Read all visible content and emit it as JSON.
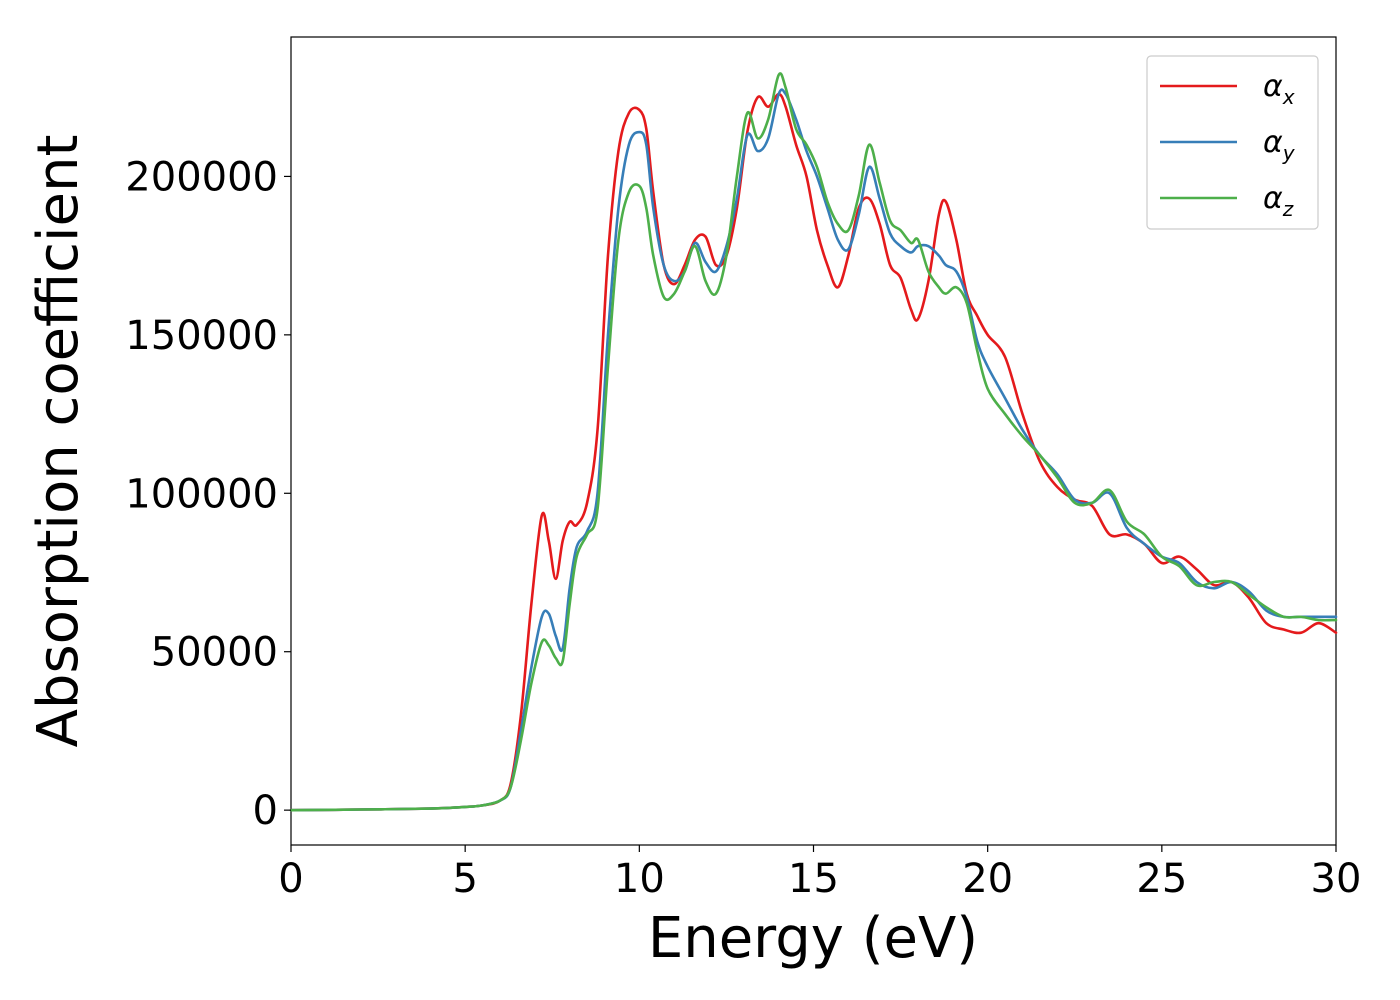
{
  "chart_data": {
    "type": "line",
    "title": "",
    "xlabel": "Energy (eV)",
    "ylabel": "Absorption coefficient",
    "xlim": [
      0,
      30
    ],
    "ylim": [
      -11000,
      244000
    ],
    "xticks": [
      0,
      5,
      10,
      15,
      20,
      25,
      30
    ],
    "xtick_labels": [
      "0",
      "5",
      "10",
      "15",
      "20",
      "25",
      "30"
    ],
    "yticks": [
      0,
      50000,
      100000,
      150000,
      200000
    ],
    "ytick_labels": [
      "0",
      "50000",
      "100000",
      "150000",
      "200000"
    ],
    "grid": false,
    "legend_position": "top-right",
    "series": [
      {
        "name": "α_x",
        "legend_base": "α",
        "legend_sub": "x",
        "color": "#e41a1c",
        "x": [
          0,
          2,
          4,
          5,
          5.5,
          6,
          6.3,
          6.6,
          6.9,
          7.2,
          7.4,
          7.6,
          7.8,
          8.0,
          8.2,
          8.5,
          8.8,
          9.1,
          9.4,
          9.7,
          10.0,
          10.2,
          10.4,
          10.7,
          11.0,
          11.3,
          11.6,
          11.9,
          12.2,
          12.5,
          12.8,
          13.1,
          13.4,
          13.7,
          14.0,
          14.2,
          14.5,
          14.8,
          15.1,
          15.4,
          15.7,
          16.0,
          16.3,
          16.6,
          16.9,
          17.2,
          17.5,
          17.8,
          18.0,
          18.3,
          18.6,
          18.8,
          19.1,
          19.4,
          19.7,
          20.0,
          20.5,
          21.0,
          21.5,
          22.0,
          22.5,
          23.0,
          23.5,
          24.0,
          24.5,
          25.0,
          25.5,
          26.0,
          26.5,
          27.0,
          27.5,
          28.0,
          28.5,
          29.0,
          29.5,
          30.0
        ],
        "y": [
          0,
          200,
          500,
          1000,
          1500,
          3000,
          8000,
          30000,
          65000,
          93000,
          85000,
          73000,
          85000,
          91000,
          90000,
          97000,
          120000,
          175000,
          208000,
          220000,
          221000,
          215000,
          195000,
          172000,
          166000,
          172000,
          180000,
          181000,
          172000,
          175000,
          190000,
          214000,
          225000,
          222000,
          226000,
          222000,
          210000,
          200000,
          183000,
          172000,
          165000,
          175000,
          190000,
          193000,
          185000,
          172000,
          168000,
          158000,
          155000,
          167000,
          188000,
          192000,
          180000,
          163000,
          156000,
          150000,
          143000,
          125000,
          110000,
          102000,
          98000,
          96000,
          87000,
          87000,
          84000,
          78000,
          80000,
          76000,
          71000,
          72000,
          67000,
          59000,
          57000,
          56000,
          59000,
          56000
        ]
      },
      {
        "name": "α_y",
        "legend_base": "α",
        "legend_sub": "y",
        "color": "#377eb8",
        "x": [
          0,
          2,
          4,
          5,
          5.5,
          6,
          6.3,
          6.6,
          6.9,
          7.2,
          7.4,
          7.6,
          7.8,
          8.0,
          8.2,
          8.5,
          8.8,
          9.1,
          9.4,
          9.7,
          10.0,
          10.2,
          10.4,
          10.7,
          11.0,
          11.3,
          11.6,
          11.9,
          12.2,
          12.5,
          12.8,
          13.1,
          13.4,
          13.7,
          14.0,
          14.2,
          14.5,
          14.8,
          15.1,
          15.4,
          15.7,
          16.0,
          16.3,
          16.6,
          16.9,
          17.2,
          17.5,
          17.8,
          18.0,
          18.3,
          18.6,
          18.8,
          19.1,
          19.4,
          19.7,
          20.0,
          20.5,
          21.0,
          21.5,
          22.0,
          22.5,
          23.0,
          23.5,
          24.0,
          24.5,
          25.0,
          25.5,
          26.0,
          26.5,
          27.0,
          27.5,
          28.0,
          28.5,
          29.0,
          29.5,
          30.0
        ],
        "y": [
          0,
          200,
          500,
          1000,
          1500,
          3000,
          7000,
          25000,
          45000,
          61000,
          62000,
          55000,
          51000,
          70000,
          83000,
          88000,
          100000,
          150000,
          190000,
          210000,
          214000,
          210000,
          190000,
          172000,
          167000,
          170000,
          179000,
          173000,
          170000,
          178000,
          193000,
          213000,
          208000,
          212000,
          226000,
          226000,
          218000,
          208000,
          200000,
          190000,
          180000,
          177000,
          188000,
          203000,
          193000,
          182000,
          178000,
          176000,
          178000,
          178000,
          175000,
          172000,
          170000,
          162000,
          148000,
          140000,
          130000,
          120000,
          112000,
          106000,
          98000,
          97000,
          100000,
          89000,
          84000,
          80000,
          78000,
          72000,
          70000,
          72000,
          69000,
          63000,
          61000,
          61000,
          61000,
          61000
        ]
      },
      {
        "name": "α_z",
        "legend_base": "α",
        "legend_sub": "z",
        "color": "#4daf4a",
        "x": [
          0,
          2,
          4,
          5,
          5.5,
          6,
          6.3,
          6.6,
          6.9,
          7.2,
          7.4,
          7.6,
          7.8,
          8.0,
          8.2,
          8.5,
          8.8,
          9.1,
          9.4,
          9.7,
          10.0,
          10.2,
          10.4,
          10.7,
          11.0,
          11.3,
          11.6,
          11.9,
          12.2,
          12.5,
          12.8,
          13.1,
          13.4,
          13.7,
          14.0,
          14.2,
          14.5,
          14.8,
          15.1,
          15.4,
          15.7,
          16.0,
          16.3,
          16.6,
          16.9,
          17.2,
          17.5,
          17.8,
          18.0,
          18.3,
          18.6,
          18.8,
          19.1,
          19.4,
          19.7,
          20.0,
          20.5,
          21.0,
          21.5,
          22.0,
          22.5,
          23.0,
          23.5,
          24.0,
          24.5,
          25.0,
          25.5,
          26.0,
          26.5,
          27.0,
          27.5,
          28.0,
          28.5,
          29.0,
          29.5,
          30.0
        ],
        "y": [
          0,
          200,
          500,
          1000,
          1500,
          3000,
          7000,
          22000,
          40000,
          53000,
          52000,
          48000,
          47000,
          65000,
          80000,
          87000,
          95000,
          140000,
          180000,
          195000,
          197000,
          190000,
          175000,
          162000,
          163000,
          170000,
          178000,
          167000,
          163000,
          175000,
          200000,
          220000,
          212000,
          218000,
          232000,
          228000,
          215000,
          210000,
          203000,
          192000,
          185000,
          183000,
          194000,
          210000,
          198000,
          186000,
          183000,
          179000,
          180000,
          170000,
          165000,
          163000,
          165000,
          160000,
          145000,
          133000,
          125000,
          118000,
          112000,
          105000,
          97000,
          97000,
          101000,
          91000,
          87000,
          80000,
          77000,
          71000,
          72000,
          72000,
          68000,
          64000,
          61000,
          61000,
          60000,
          60000
        ]
      }
    ]
  }
}
